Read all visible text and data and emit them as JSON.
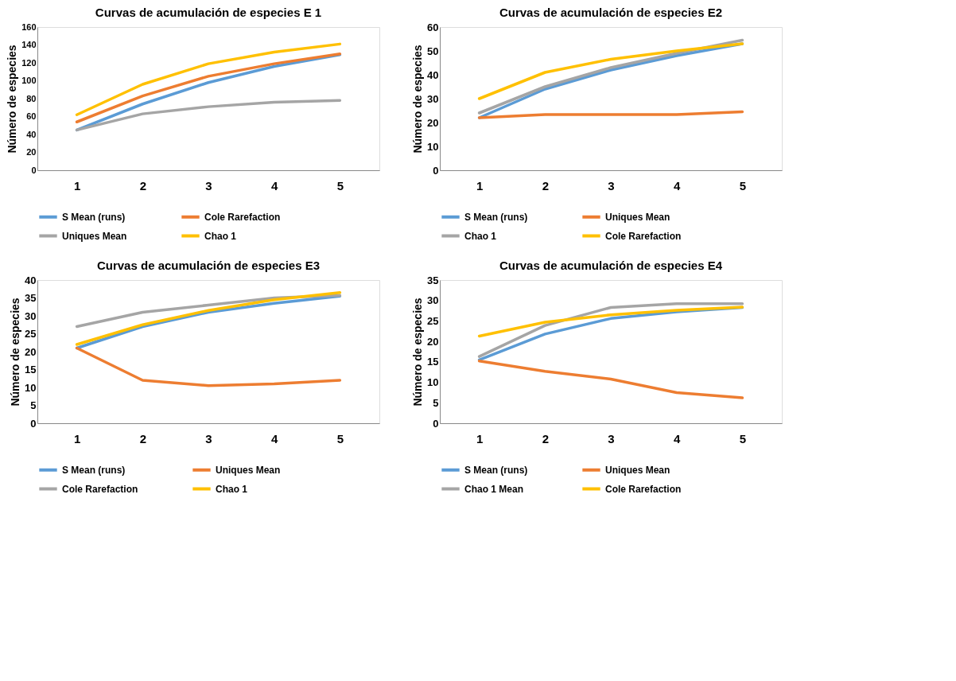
{
  "chart_data": [
    {
      "type": "line",
      "title": "Curvas de acumulación de especies E 1",
      "ylabel": "Número de especies",
      "categories": [
        "1",
        "2",
        "3",
        "4",
        "5"
      ],
      "ylim": [
        0,
        160
      ],
      "yticks": [
        0,
        20,
        40,
        60,
        80,
        100,
        120,
        140,
        160
      ],
      "grid": false,
      "legend": "bottom",
      "marker": "none",
      "line_style": "solid",
      "series": [
        {
          "name": "S Mean (runs)",
          "color": "#5b9bd5",
          "values": [
            45,
            74,
            98,
            116,
            129
          ]
        },
        {
          "name": "Cole Rarefaction",
          "color": "#ed7d31",
          "values": [
            54,
            83,
            105,
            119,
            130
          ]
        },
        {
          "name": "Uniques Mean",
          "color": "#a5a5a5",
          "values": [
            45,
            63,
            71,
            76,
            78
          ]
        },
        {
          "name": "Chao 1",
          "color": "#ffc000",
          "values": [
            62,
            96,
            119,
            132,
            141
          ]
        }
      ]
    },
    {
      "type": "line",
      "title": "Curvas de acumulación de especies E2",
      "ylabel": "Número de especies",
      "categories": [
        "1",
        "2",
        "3",
        "4",
        "5"
      ],
      "ylim": [
        0,
        60
      ],
      "yticks": [
        0,
        10,
        20,
        30,
        40,
        50,
        60
      ],
      "grid": false,
      "legend": "bottom",
      "marker": "none",
      "line_style": "solid",
      "series": [
        {
          "name": "S Mean (runs)",
          "color": "#5b9bd5",
          "values": [
            22,
            34,
            42,
            48,
            53
          ]
        },
        {
          "name": "Uniques Mean",
          "color": "#ed7d31",
          "values": [
            22,
            23.3,
            23.3,
            23.3,
            24.5
          ]
        },
        {
          "name": "Chao 1",
          "color": "#a5a5a5",
          "values": [
            24,
            35,
            43,
            49,
            54.5
          ]
        },
        {
          "name": "Cole Rarefaction",
          "color": "#ffc000",
          "values": [
            30,
            41,
            46.5,
            50,
            53
          ]
        }
      ]
    },
    {
      "type": "line",
      "title": "Curvas de acumulación de especies E3",
      "ylabel": "Número de especies",
      "categories": [
        "1",
        "2",
        "3",
        "4",
        "5"
      ],
      "ylim": [
        0,
        40
      ],
      "yticks": [
        0,
        5,
        10,
        15,
        20,
        25,
        30,
        35,
        40
      ],
      "grid": false,
      "legend": "bottom",
      "marker": "none",
      "line_style": "solid",
      "series": [
        {
          "name": "S Mean (runs)",
          "color": "#5b9bd5",
          "values": [
            21,
            27,
            31,
            33.5,
            35.5
          ]
        },
        {
          "name": "Uniques Mean",
          "color": "#ed7d31",
          "values": [
            21,
            12,
            10.5,
            11,
            12
          ]
        },
        {
          "name": "Cole Rarefaction",
          "color": "#a5a5a5",
          "values": [
            27,
            31,
            33,
            35,
            35.7
          ]
        },
        {
          "name": "Chao 1",
          "color": "#ffc000",
          "values": [
            22,
            27.5,
            31.5,
            34.5,
            36.5
          ]
        }
      ]
    },
    {
      "type": "line",
      "title": "Curvas de acumulación de especies E4",
      "ylabel": "Número de especies",
      "categories": [
        "1",
        "2",
        "3",
        "4",
        "5"
      ],
      "ylim": [
        0,
        35
      ],
      "yticks": [
        0,
        5,
        10,
        15,
        20,
        25,
        30,
        35
      ],
      "grid": false,
      "legend": "bottom",
      "marker": "none",
      "line_style": "solid",
      "series": [
        {
          "name": "S Mean (runs)",
          "color": "#5b9bd5",
          "values": [
            15.5,
            21.8,
            25.6,
            27.2,
            28.3
          ]
        },
        {
          "name": "Uniques Mean",
          "color": "#ed7d31",
          "values": [
            15.2,
            12.7,
            10.8,
            7.5,
            6.2
          ]
        },
        {
          "name": "Chao 1 Mean",
          "color": "#a5a5a5",
          "values": [
            16.3,
            23.9,
            28.3,
            29.2,
            29.2
          ]
        },
        {
          "name": "Cole Rarefaction",
          "color": "#ffc000",
          "values": [
            21.3,
            24.7,
            26.5,
            27.6,
            28.4
          ]
        }
      ]
    }
  ]
}
